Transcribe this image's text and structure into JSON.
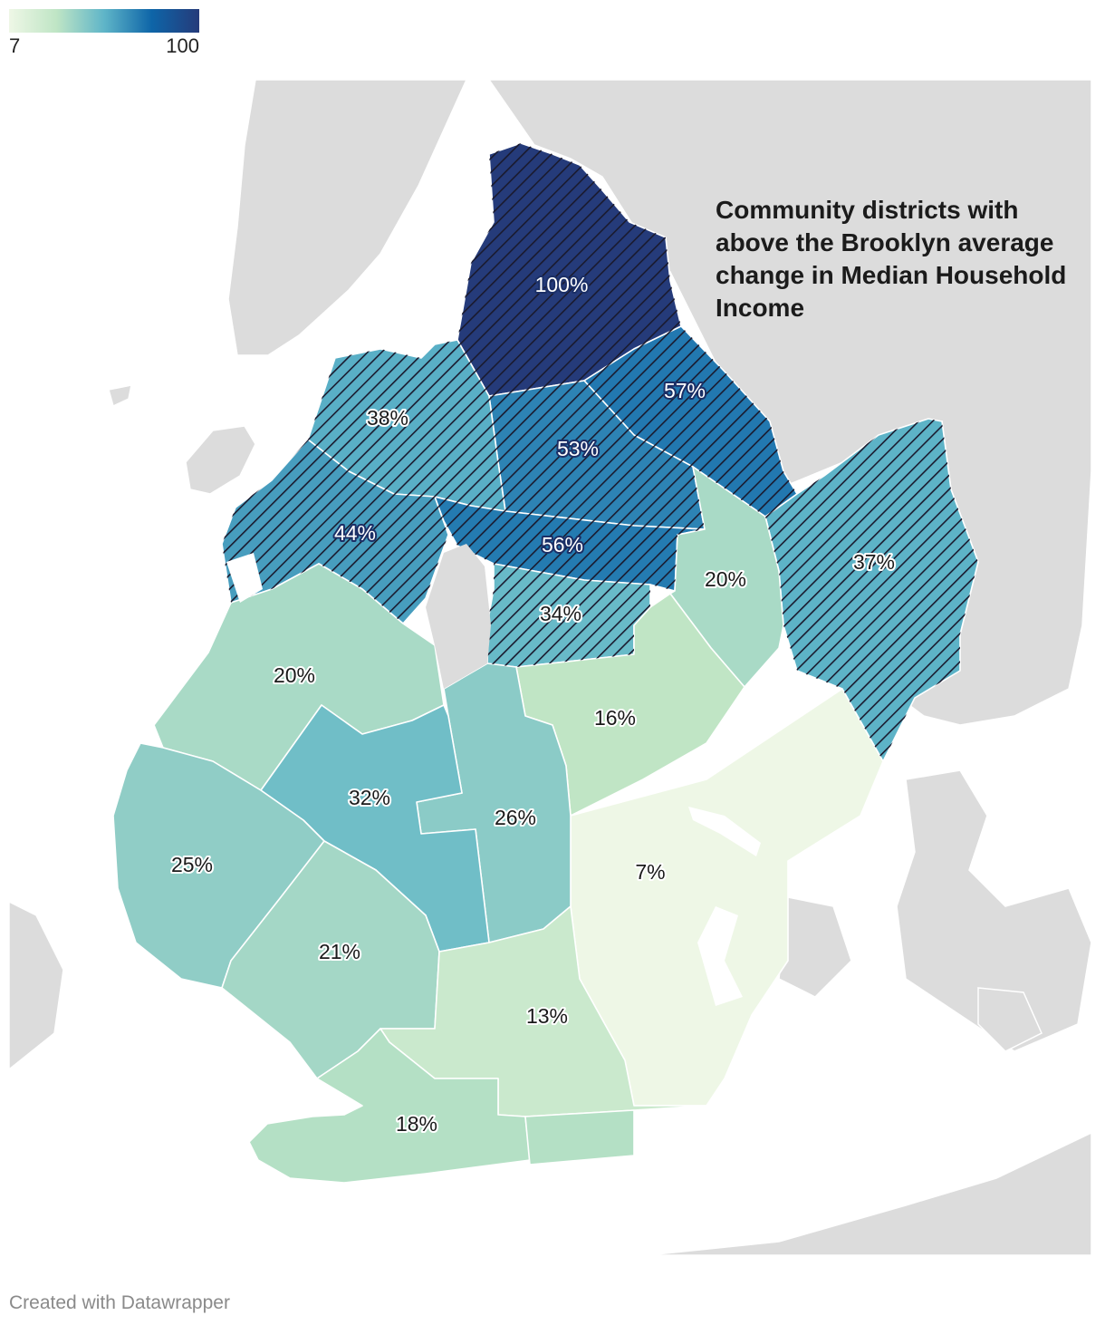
{
  "legend": {
    "min": "7",
    "max": "100",
    "colors": [
      "#eef7e6",
      "#bfe5c5",
      "#5fb5c8",
      "#0e65a8",
      "#253b7a"
    ]
  },
  "annotation": "Community districts with above the Brooklyn average change in Median Household Income",
  "footer": "Created with Datawrapper",
  "colors": {
    "land": "#dcdcdc",
    "water": "#ffffff",
    "hatch": "#1a1a2e"
  },
  "districts": [
    {
      "id": "greenpoint-williamsburg",
      "label": "100%",
      "value": 100,
      "above_average": true
    },
    {
      "id": "bushwick",
      "label": "57%",
      "value": 57,
      "above_average": true
    },
    {
      "id": "bedford-stuyvesant",
      "label": "53%",
      "value": 53,
      "above_average": true
    },
    {
      "id": "downtown-brooklyn",
      "label": "38%",
      "value": 38,
      "above_average": true
    },
    {
      "id": "park-slope",
      "label": "44%",
      "value": 44,
      "above_average": true
    },
    {
      "id": "crown-heights-north",
      "label": "56%",
      "value": 56,
      "above_average": true
    },
    {
      "id": "crown-heights-south",
      "label": "34%",
      "value": 34,
      "above_average": true
    },
    {
      "id": "east-new-york",
      "label": "37%",
      "value": 37,
      "above_average": true
    },
    {
      "id": "brownsville",
      "label": "20%",
      "value": 20,
      "above_average": false
    },
    {
      "id": "sunset-park",
      "label": "20%",
      "value": 20,
      "above_average": false
    },
    {
      "id": "borough-park",
      "label": "32%",
      "value": 32,
      "above_average": false
    },
    {
      "id": "flatbush",
      "label": "26%",
      "value": 26,
      "above_average": false
    },
    {
      "id": "east-flatbush",
      "label": "16%",
      "value": 16,
      "above_average": false
    },
    {
      "id": "canarsie",
      "label": "7%",
      "value": 7,
      "above_average": false
    },
    {
      "id": "bay-ridge",
      "label": "25%",
      "value": 25,
      "above_average": false
    },
    {
      "id": "bensonhurst",
      "label": "21%",
      "value": 21,
      "above_average": false
    },
    {
      "id": "sheepshead-bay",
      "label": "13%",
      "value": 13,
      "above_average": false
    },
    {
      "id": "coney-island",
      "label": "18%",
      "value": 18,
      "above_average": false
    }
  ]
}
